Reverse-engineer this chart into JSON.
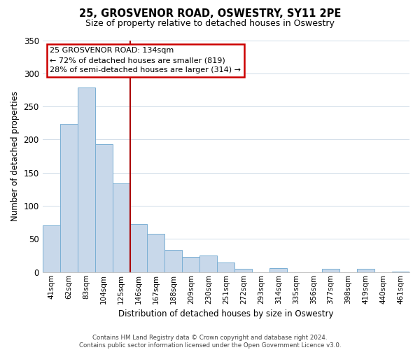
{
  "title": "25, GROSVENOR ROAD, OSWESTRY, SY11 2PE",
  "subtitle": "Size of property relative to detached houses in Oswestry",
  "xlabel": "Distribution of detached houses by size in Oswestry",
  "ylabel": "Number of detached properties",
  "bar_color": "#c8d8ea",
  "bar_edge_color": "#7aafd4",
  "categories": [
    "41sqm",
    "62sqm",
    "83sqm",
    "104sqm",
    "125sqm",
    "146sqm",
    "167sqm",
    "188sqm",
    "209sqm",
    "230sqm",
    "251sqm",
    "272sqm",
    "293sqm",
    "314sqm",
    "335sqm",
    "356sqm",
    "377sqm",
    "398sqm",
    "419sqm",
    "440sqm",
    "461sqm"
  ],
  "values": [
    71,
    224,
    279,
    193,
    134,
    73,
    58,
    34,
    23,
    25,
    15,
    5,
    0,
    6,
    0,
    0,
    5,
    0,
    5,
    0,
    1
  ],
  "ylim": [
    0,
    350
  ],
  "yticks": [
    0,
    50,
    100,
    150,
    200,
    250,
    300,
    350
  ],
  "vline_index": 4.5,
  "vline_color": "#aa0000",
  "annotation_title": "25 GROSVENOR ROAD: 134sqm",
  "annotation_line1": "← 72% of detached houses are smaller (819)",
  "annotation_line2": "28% of semi-detached houses are larger (314) →",
  "annotation_box_color": "#ffffff",
  "annotation_box_edge": "#cc0000",
  "footer_line1": "Contains HM Land Registry data © Crown copyright and database right 2024.",
  "footer_line2": "Contains public sector information licensed under the Open Government Licence v3.0.",
  "background_color": "#ffffff",
  "grid_color": "#d0dce8"
}
